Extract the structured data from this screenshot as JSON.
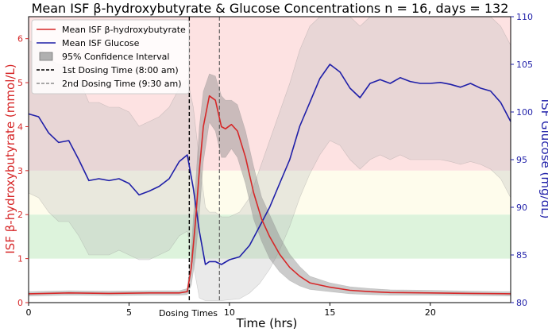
{
  "chart_data": {
    "type": "line",
    "title": "Mean ISF β-hydroxybutyrate & Glucose Concentrations n = 16, days = 132",
    "xlabel": "Time (hrs)",
    "ylabel_left": "ISF β-hydroxybutyrate (mmol/L)",
    "ylabel_right": "ISF Glucose (mg/dL)",
    "xlim": [
      0,
      24
    ],
    "ylim_left": [
      0,
      6.5
    ],
    "ylim_right": [
      80,
      110
    ],
    "x_ticks": [
      0,
      5,
      10,
      15,
      20
    ],
    "y_ticks_left": [
      0,
      1,
      2,
      3,
      4,
      5,
      6
    ],
    "y_ticks_right": [
      80,
      85,
      90,
      95,
      100,
      105,
      110
    ],
    "dosing_label": "Dosing Times",
    "colors": {
      "bhb": "#d62728",
      "glucose": "#1f1fa8",
      "ci": "#a0a0a0",
      "left_axis": "#d62728",
      "right_axis": "#1f1fa8",
      "zone_red": "#fde2e2",
      "zone_yellow": "#fefcec",
      "zone_green": "#ddf3dc"
    },
    "zones": [
      {
        "from": 3,
        "to": 6.5,
        "color": "zone_red"
      },
      {
        "from": 2,
        "to": 3,
        "color": "zone_yellow"
      },
      {
        "from": 1,
        "to": 2,
        "color": "zone_green"
      }
    ],
    "vlines": [
      {
        "x": 8.0,
        "style": "dashed-dark"
      },
      {
        "x": 9.5,
        "style": "dashed-gray"
      }
    ],
    "legend": [
      {
        "label": "Mean ISF β-hydroxybutyrate",
        "kind": "line",
        "color": "bhb"
      },
      {
        "label": "Mean ISF Glucose",
        "kind": "line",
        "color": "glucose"
      },
      {
        "label": "95% Confidence Interval",
        "kind": "patch",
        "color": "ci"
      },
      {
        "label": "1st Dosing Time (8:00 am)",
        "kind": "dashed-dark"
      },
      {
        "label": "2nd Dosing Time (9:30 am)",
        "kind": "dashed-gray"
      }
    ],
    "series": [
      {
        "name": "Mean ISF β-hydroxybutyrate",
        "axis": "left",
        "color": "bhb",
        "x": [
          0,
          2,
          4,
          6,
          7.5,
          7.9,
          8.1,
          8.3,
          8.5,
          8.7,
          9.0,
          9.3,
          9.6,
          9.8,
          10.1,
          10.4,
          10.8,
          11.2,
          11.6,
          12,
          12.5,
          13,
          13.5,
          14,
          15,
          16,
          17,
          18,
          20,
          22,
          24
        ],
        "y": [
          0.2,
          0.22,
          0.21,
          0.22,
          0.22,
          0.25,
          0.8,
          1.8,
          3.0,
          4.0,
          4.7,
          4.6,
          4.0,
          3.95,
          4.05,
          3.9,
          3.3,
          2.5,
          1.9,
          1.5,
          1.1,
          0.8,
          0.6,
          0.45,
          0.35,
          0.28,
          0.25,
          0.23,
          0.22,
          0.21,
          0.2
        ],
        "ci_lower": [
          0.15,
          0.17,
          0.16,
          0.17,
          0.17,
          0.18,
          0.4,
          1.0,
          2.0,
          3.2,
          4.1,
          3.9,
          3.3,
          3.3,
          3.5,
          3.3,
          2.7,
          1.9,
          1.4,
          1.0,
          0.7,
          0.5,
          0.38,
          0.3,
          0.25,
          0.2,
          0.18,
          0.17,
          0.17,
          0.16,
          0.15
        ],
        "ci_upper": [
          0.25,
          0.27,
          0.26,
          0.27,
          0.27,
          0.32,
          1.2,
          2.6,
          4.0,
          4.8,
          5.2,
          5.15,
          4.7,
          4.6,
          4.6,
          4.5,
          3.9,
          3.1,
          2.4,
          2.0,
          1.5,
          1.1,
          0.82,
          0.6,
          0.45,
          0.36,
          0.32,
          0.29,
          0.28,
          0.26,
          0.25
        ]
      },
      {
        "name": "Mean ISF Glucose",
        "axis": "right",
        "color": "glucose",
        "x": [
          0,
          0.5,
          1,
          1.5,
          2,
          2.5,
          3,
          3.5,
          4,
          4.5,
          5,
          5.5,
          6,
          6.5,
          7,
          7.5,
          7.9,
          8.2,
          8.5,
          8.8,
          9.0,
          9.3,
          9.6,
          10,
          10.5,
          11,
          11.5,
          12,
          12.5,
          13,
          13.5,
          14,
          14.5,
          15,
          15.5,
          16,
          16.5,
          17,
          17.5,
          18,
          18.5,
          19,
          19.5,
          20,
          20.5,
          21,
          21.5,
          22,
          22.5,
          23,
          23.5,
          24
        ],
        "y": [
          99.8,
          99.5,
          97.8,
          96.8,
          97.0,
          95.0,
          92.8,
          93.0,
          92.8,
          93.0,
          92.5,
          91.3,
          91.7,
          92.2,
          93.0,
          94.8,
          95.5,
          92.0,
          87.5,
          84.0,
          84.3,
          84.3,
          84.0,
          84.5,
          84.8,
          86.0,
          88.0,
          90.0,
          92.5,
          95.0,
          98.5,
          101.0,
          103.5,
          105.0,
          104.2,
          102.5,
          101.5,
          103.0,
          103.4,
          103.0,
          103.6,
          103.2,
          103.0,
          103.0,
          103.1,
          102.9,
          102.6,
          103.0,
          102.5,
          102.2,
          101.0,
          99.0
        ],
        "ci_lower": [
          91.5,
          91.0,
          89.5,
          88.5,
          88.5,
          87.0,
          85.0,
          85.0,
          85.0,
          85.5,
          85.0,
          84.5,
          84.5,
          85.0,
          85.5,
          87.0,
          87.5,
          84.0,
          80.5,
          80.2,
          80.2,
          80.2,
          80.2,
          80.3,
          80.4,
          81.0,
          82.0,
          83.5,
          85.5,
          88.0,
          91.0,
          93.5,
          95.5,
          97.0,
          96.5,
          95.0,
          94.0,
          95.0,
          95.5,
          95.0,
          95.5,
          95.0,
          95.0,
          95.0,
          95.0,
          94.8,
          94.5,
          94.8,
          94.5,
          94.0,
          93.0,
          91.0
        ],
        "ci_upper": [
          107.5,
          107.0,
          105.5,
          105.0,
          105.0,
          103.5,
          101.0,
          101.0,
          100.5,
          100.5,
          100.0,
          98.5,
          99.0,
          99.5,
          100.5,
          102.5,
          103.5,
          100.5,
          95.0,
          90.0,
          89.5,
          89.5,
          89.0,
          89.0,
          89.5,
          91.0,
          94.0,
          97.0,
          100.0,
          103.0,
          106.5,
          109.0,
          110.0,
          110.0,
          110.0,
          110.0,
          109.0,
          110.0,
          110.0,
          110.0,
          110.0,
          110.0,
          110.0,
          110.0,
          110.0,
          110.0,
          110.0,
          110.0,
          110.0,
          110.0,
          109.0,
          107.0
        ]
      }
    ]
  }
}
